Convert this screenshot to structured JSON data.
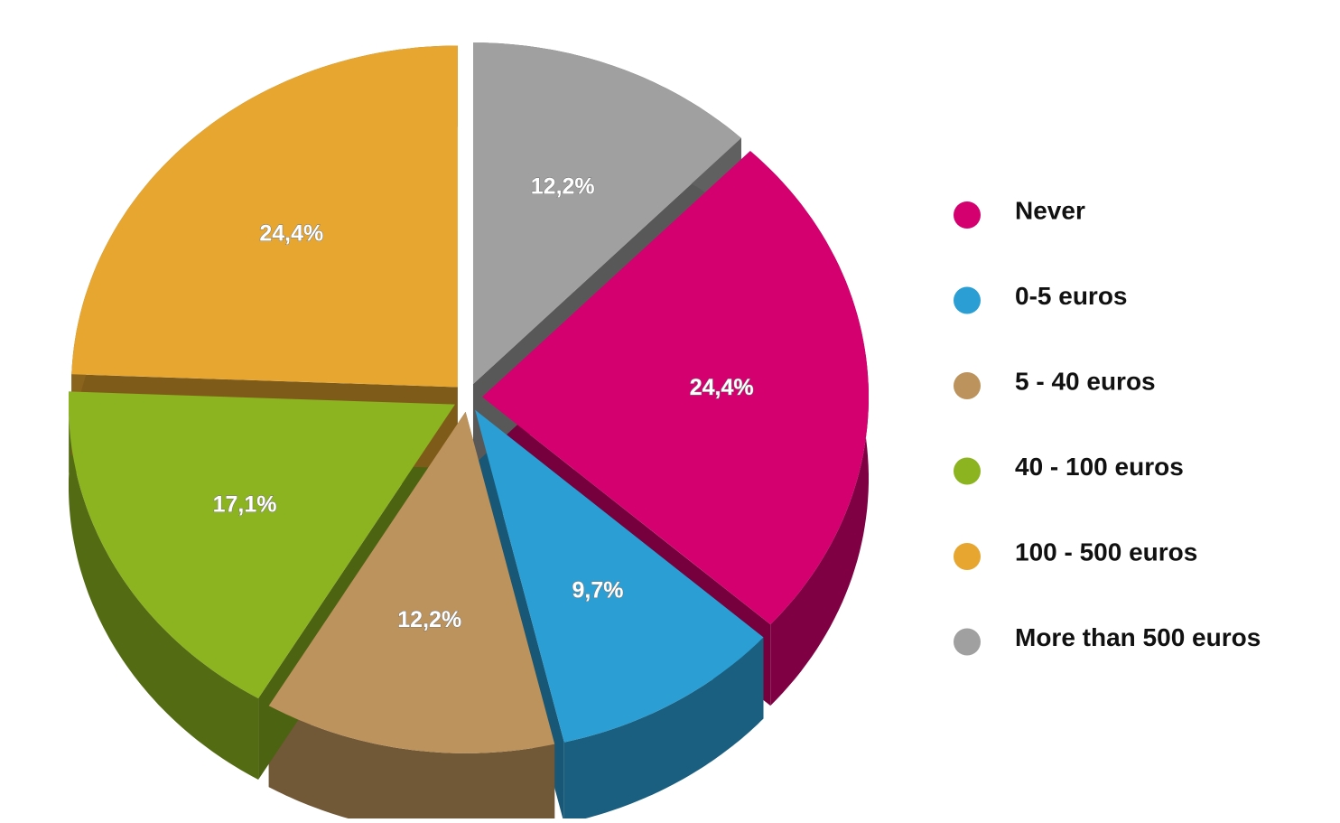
{
  "chart_data": {
    "type": "pie",
    "categories": [
      "Never",
      "0-5 euros",
      "5 - 40 euros",
      "40 - 100 euros",
      "100 - 500 euros",
      "More than 500 euros"
    ],
    "values": [
      24.4,
      9.7,
      12.2,
      17.1,
      24.4,
      12.2
    ],
    "value_labels": [
      "24,4%",
      "9,7%",
      "12,2%",
      "17,1%",
      "24,4%",
      "12,2%"
    ],
    "colors": [
      "#d4006f",
      "#2b9ed4",
      "#bc935c",
      "#8bb420",
      "#e6a630",
      "#a0a0a0"
    ],
    "legend": "right"
  }
}
